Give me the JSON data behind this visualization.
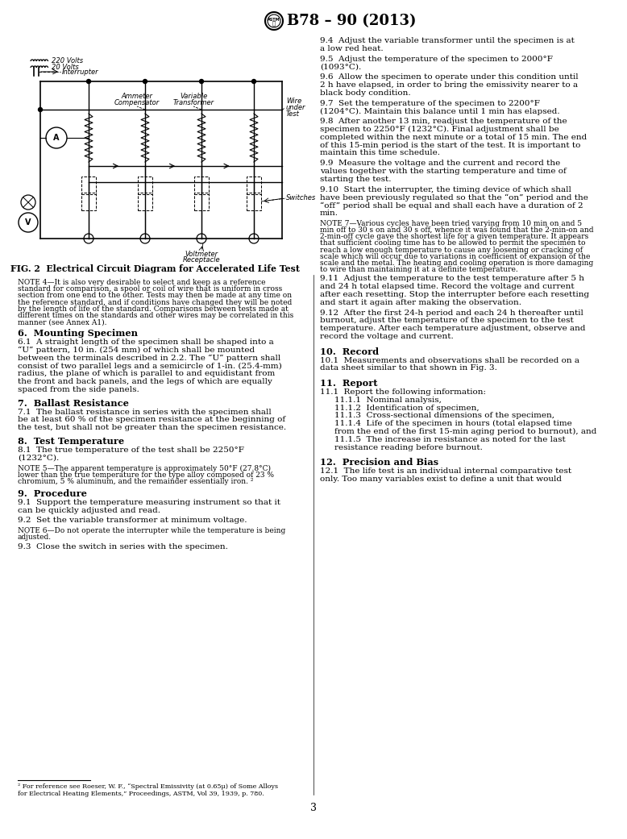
{
  "title": "B78 – 90 (2013)",
  "page_number": "3",
  "background_color": "#ffffff",
  "fig_caption": "FIG. 2  Electrical Circuit Diagram for Accelerated Life Test",
  "note4": "NOTE 4—It is also very desirable to select and keep as a reference standard for comparison, a spool or coil of wire that is uniform in cross section from one end to the other. Tests may then be made at any time on the reference standard, and if conditions have changed they will be noted by the length of life of the standard. Comparisons between tests made at different times on the standards and other wires may be correlated in this manner (see Annex A1).",
  "note5": "NOTE 5—The apparent temperature is approximately 50°F (27.8°C) lower than the true temperature for the type alloy composed of 23 % chromium, 5 % aluminum, and the remainder essentially iron. ²",
  "note6": "NOTE 6—Do not operate the interrupter while the temperature is being adjusted.",
  "note7": "NOTE 7—Various cycles have been tried varying from 10 min on and 5 min off to 30 s on and 30 s off, whence it was found that the 2-min-on and 2-min-off cycle gave the shortest life for a given temperature. It appears that sufficient cooling time has to be allowed to permit the specimen to reach a low enough temperature to cause any loosening or cracking of scale which will occur due to variations in coefficient of expansion of the scale and the metal. The heating and cooling operation is more damaging to wire than maintaining it at a definite temperature.",
  "footnote_line1": "² For reference see Roeser, W. F., “Spectral Emissivity (at 0.65μ) of Some Alloys",
  "footnote_line2": "for Electrical Heating Elements,” Proceedings, ASTM, Vol 39, 1939, p. 780.",
  "s6_head": "6.  Mounting Specimen",
  "s6_p1": "6.1  A straight length of the specimen shall be shaped into a “U” pattern, 10 in. (254 mm) of which shall be mounted between the terminals described in 2.2. The “U” pattern shall consist of two parallel legs and a semicircle of 1-in. (25.4-mm) radius, the plane of which is parallel to and equidistant from the front and back panels, and the legs of which are equally spaced from the side panels.",
  "s7_head": "7.  Ballast Resistance",
  "s7_p1": "7.1  The ballast resistance in series with the specimen shall be at least 60 % of the specimen resistance at the beginning of the test, but shall not be greater than the specimen resistance.",
  "s8_head": "8.  Test Temperature",
  "s8_p1": "8.1  The true temperature of the test shall be 2250°F (1232°C).",
  "s9_head": "9.  Procedure",
  "s9_p1": "9.1  Support the temperature measuring instrument so that it can be quickly adjusted and read.",
  "s9_p2": "9.2  Set the variable transformer at minimum voltage.",
  "s9_p3": "9.3  Close the switch in series with the specimen.",
  "s9_p4": "9.4  Adjust the variable transformer until the specimen is at a low red heat.",
  "s9_p5": "9.5  Adjust the temperature of the specimen to 2000°F (1093°C).",
  "s9_p6": "9.6  Allow the specimen to operate under this condition until 2 h have elapsed, in order to bring the emissivity nearer to a black body condition.",
  "s9_p7": "9.7  Set the temperature of the specimen to 2200°F (1204°C). Maintain this balance until 1 min has elapsed.",
  "s9_p8": "9.8  After another 13 min, readjust the temperature of the specimen to 2250°F (1232°C). Final adjustment shall be completed within the next minute or a total of 15 min. The end of this 15-min period is the start of the test. It is important to maintain this time schedule.",
  "s9_p9": "9.9  Measure the voltage and the current and record the values together with the starting temperature and time of starting the test.",
  "s9_p10": "9.10  Start the interrupter, the timing device of which shall have been previously regulated so that the “on” period and the “off” period shall be equal and shall each have a duration of 2 min.",
  "s9_p11": "9.11  Adjust the temperature to the test temperature after 5 h and 24 h total elapsed time. Record the voltage and current after each resetting. Stop the interrupter before each resetting and start it again after making the observation.",
  "s9_p12": "9.12  After the first 24-h period and each 24 h thereafter until burnout, adjust the temperature of the specimen to the test temperature. After each temperature adjustment, observe and record the voltage and current.",
  "s10_head": "10.  Record",
  "s10_p1": "10.1  Measurements and observations shall be recorded on a data sheet similar to that shown in Fig. 3.",
  "s11_head": "11.  Report",
  "s11_p1": "11.1  Report the following information:",
  "s11_p1a": "11.1.1  Nominal analysis,",
  "s11_p1b": "11.1.2  Identification of specimen,",
  "s11_p1c": "11.1.3  Cross-sectional dimensions of the specimen,",
  "s11_p1d": "11.1.4  Life of the specimen in hours (total elapsed time from the end of the first 15-min aging period to burnout), and",
  "s11_p1e": "11.1.5  The increase in resistance as noted for the last resistance reading before burnout.",
  "s12_head": "12.  Precision and Bias",
  "s12_p1": "12.1  The life test is an individual internal comparative test only. Too many variables exist to define a unit that would"
}
